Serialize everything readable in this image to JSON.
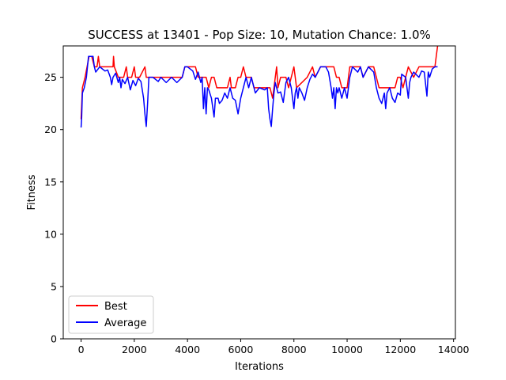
{
  "chart_data": {
    "type": "line",
    "title": "SUCCESS at 13401 - Pop Size: 10, Mutation Chance: 1.0%",
    "xlabel": "Iterations",
    "ylabel": "Fitness",
    "xlim": [
      -670,
      14070
    ],
    "ylim": [
      0,
      28
    ],
    "xticks": [
      0,
      2000,
      4000,
      6000,
      8000,
      10000,
      12000,
      14000
    ],
    "yticks": [
      0,
      5,
      10,
      15,
      20,
      25
    ],
    "grid": false,
    "legend": "lower-left",
    "series": [
      {
        "name": "Best",
        "color": "#ff0000",
        "points": [
          [
            0,
            21
          ],
          [
            50,
            24
          ],
          [
            150,
            25
          ],
          [
            300,
            27
          ],
          [
            400,
            27
          ],
          [
            500,
            26
          ],
          [
            600,
            26
          ],
          [
            650,
            27
          ],
          [
            700,
            26
          ],
          [
            1200,
            26
          ],
          [
            1220,
            27
          ],
          [
            1250,
            26
          ],
          [
            1400,
            25
          ],
          [
            1600,
            25
          ],
          [
            1700,
            26
          ],
          [
            1750,
            25
          ],
          [
            1900,
            25
          ],
          [
            2000,
            26
          ],
          [
            2050,
            25
          ],
          [
            2200,
            25
          ],
          [
            2400,
            26
          ],
          [
            2450,
            25
          ],
          [
            3000,
            25
          ],
          [
            3800,
            25
          ],
          [
            3900,
            26
          ],
          [
            4300,
            26
          ],
          [
            4400,
            25
          ],
          [
            4700,
            25
          ],
          [
            4800,
            24
          ],
          [
            4900,
            25
          ],
          [
            5000,
            25
          ],
          [
            5100,
            24
          ],
          [
            5300,
            24
          ],
          [
            5500,
            24
          ],
          [
            5600,
            25
          ],
          [
            5650,
            24
          ],
          [
            5800,
            24
          ],
          [
            5900,
            25
          ],
          [
            6000,
            25
          ],
          [
            6100,
            26
          ],
          [
            6200,
            25
          ],
          [
            6400,
            25
          ],
          [
            6500,
            24
          ],
          [
            7000,
            24
          ],
          [
            7100,
            24
          ],
          [
            7200,
            23
          ],
          [
            7300,
            25
          ],
          [
            7350,
            26
          ],
          [
            7400,
            24
          ],
          [
            7500,
            25
          ],
          [
            7700,
            25
          ],
          [
            7800,
            24
          ],
          [
            7900,
            25
          ],
          [
            8000,
            26
          ],
          [
            8100,
            24
          ],
          [
            8500,
            25
          ],
          [
            8700,
            26
          ],
          [
            8800,
            25
          ],
          [
            9000,
            26
          ],
          [
            9500,
            26
          ],
          [
            9600,
            25
          ],
          [
            9700,
            25
          ],
          [
            9800,
            24
          ],
          [
            10000,
            24
          ],
          [
            10100,
            26
          ],
          [
            10500,
            26
          ],
          [
            10600,
            25
          ],
          [
            10800,
            26
          ],
          [
            11000,
            26
          ],
          [
            11100,
            25
          ],
          [
            11200,
            24
          ],
          [
            11800,
            24
          ],
          [
            11900,
            25
          ],
          [
            12000,
            25
          ],
          [
            12100,
            24
          ],
          [
            12300,
            26
          ],
          [
            12500,
            25
          ],
          [
            12700,
            26
          ],
          [
            13000,
            26
          ],
          [
            13200,
            26
          ],
          [
            13300,
            26
          ],
          [
            13350,
            27
          ],
          [
            13401,
            28
          ]
        ]
      },
      {
        "name": "Average",
        "color": "#0000ff",
        "points": [
          [
            0,
            20.2
          ],
          [
            20,
            21
          ],
          [
            50,
            23.5
          ],
          [
            120,
            24
          ],
          [
            200,
            25
          ],
          [
            280,
            27
          ],
          [
            350,
            27
          ],
          [
            450,
            27
          ],
          [
            500,
            26
          ],
          [
            550,
            25.5
          ],
          [
            700,
            26
          ],
          [
            900,
            25.6
          ],
          [
            1000,
            25.7
          ],
          [
            1100,
            25
          ],
          [
            1150,
            24.3
          ],
          [
            1200,
            25
          ],
          [
            1300,
            25.4
          ],
          [
            1400,
            24.5
          ],
          [
            1450,
            25
          ],
          [
            1500,
            24
          ],
          [
            1550,
            24.8
          ],
          [
            1650,
            24.4
          ],
          [
            1750,
            25
          ],
          [
            1850,
            23.8
          ],
          [
            1950,
            24.7
          ],
          [
            2050,
            24.2
          ],
          [
            2150,
            24.9
          ],
          [
            2250,
            24.6
          ],
          [
            2350,
            23
          ],
          [
            2400,
            21.5
          ],
          [
            2450,
            20.3
          ],
          [
            2500,
            22.5
          ],
          [
            2550,
            25
          ],
          [
            2700,
            25
          ],
          [
            2900,
            24.6
          ],
          [
            3000,
            25
          ],
          [
            3200,
            24.5
          ],
          [
            3400,
            25
          ],
          [
            3600,
            24.5
          ],
          [
            3800,
            25
          ],
          [
            3900,
            26
          ],
          [
            4000,
            26
          ],
          [
            4200,
            25.6
          ],
          [
            4300,
            24.8
          ],
          [
            4400,
            25.5
          ],
          [
            4500,
            24.5
          ],
          [
            4550,
            25
          ],
          [
            4600,
            22
          ],
          [
            4650,
            24
          ],
          [
            4700,
            21.5
          ],
          [
            4750,
            24
          ],
          [
            4800,
            23.8
          ],
          [
            4900,
            23
          ],
          [
            5000,
            21.2
          ],
          [
            5050,
            23
          ],
          [
            5150,
            23
          ],
          [
            5200,
            22.5
          ],
          [
            5300,
            22.8
          ],
          [
            5400,
            23.5
          ],
          [
            5500,
            23
          ],
          [
            5600,
            24
          ],
          [
            5700,
            23
          ],
          [
            5800,
            22.8
          ],
          [
            5900,
            21.5
          ],
          [
            6000,
            23
          ],
          [
            6100,
            24
          ],
          [
            6200,
            25
          ],
          [
            6300,
            24
          ],
          [
            6400,
            25
          ],
          [
            6500,
            24
          ],
          [
            6550,
            23.5
          ],
          [
            6700,
            24
          ],
          [
            6900,
            23.8
          ],
          [
            7000,
            24
          ],
          [
            7050,
            22
          ],
          [
            7100,
            21
          ],
          [
            7150,
            20.3
          ],
          [
            7200,
            22
          ],
          [
            7250,
            23.5
          ],
          [
            7300,
            24.5
          ],
          [
            7400,
            23.5
          ],
          [
            7500,
            23.6
          ],
          [
            7600,
            22.6
          ],
          [
            7700,
            24.5
          ],
          [
            7800,
            25
          ],
          [
            7900,
            24
          ],
          [
            8000,
            22
          ],
          [
            8050,
            23.5
          ],
          [
            8100,
            24
          ],
          [
            8150,
            23
          ],
          [
            8200,
            24
          ],
          [
            8300,
            23.5
          ],
          [
            8400,
            22.8
          ],
          [
            8500,
            24
          ],
          [
            8600,
            24.8
          ],
          [
            8700,
            25.3
          ],
          [
            8800,
            25
          ],
          [
            8900,
            25.5
          ],
          [
            9000,
            26
          ],
          [
            9200,
            26
          ],
          [
            9300,
            25.5
          ],
          [
            9400,
            24
          ],
          [
            9450,
            23
          ],
          [
            9500,
            24
          ],
          [
            9550,
            22
          ],
          [
            9600,
            24
          ],
          [
            9650,
            23.5
          ],
          [
            9700,
            24
          ],
          [
            9800,
            23
          ],
          [
            9900,
            24
          ],
          [
            10000,
            23
          ],
          [
            10100,
            25
          ],
          [
            10200,
            26
          ],
          [
            10400,
            25.5
          ],
          [
            10500,
            26
          ],
          [
            10600,
            25
          ],
          [
            10700,
            25.5
          ],
          [
            10800,
            26
          ],
          [
            11000,
            25.5
          ],
          [
            11100,
            24
          ],
          [
            11200,
            23
          ],
          [
            11300,
            22.5
          ],
          [
            11400,
            23.5
          ],
          [
            11450,
            22
          ],
          [
            11500,
            23.5
          ],
          [
            11600,
            24
          ],
          [
            11700,
            23
          ],
          [
            11800,
            22.6
          ],
          [
            11900,
            23.5
          ],
          [
            12000,
            23.3
          ],
          [
            12050,
            25.3
          ],
          [
            12200,
            25
          ],
          [
            12300,
            23
          ],
          [
            12350,
            24.5
          ],
          [
            12400,
            25
          ],
          [
            12500,
            25.5
          ],
          [
            12700,
            25
          ],
          [
            12800,
            25.6
          ],
          [
            12900,
            25.5
          ],
          [
            13000,
            23.2
          ],
          [
            13050,
            25.5
          ],
          [
            13100,
            25
          ],
          [
            13200,
            25.8
          ],
          [
            13300,
            26
          ],
          [
            13401,
            26
          ]
        ]
      }
    ]
  }
}
